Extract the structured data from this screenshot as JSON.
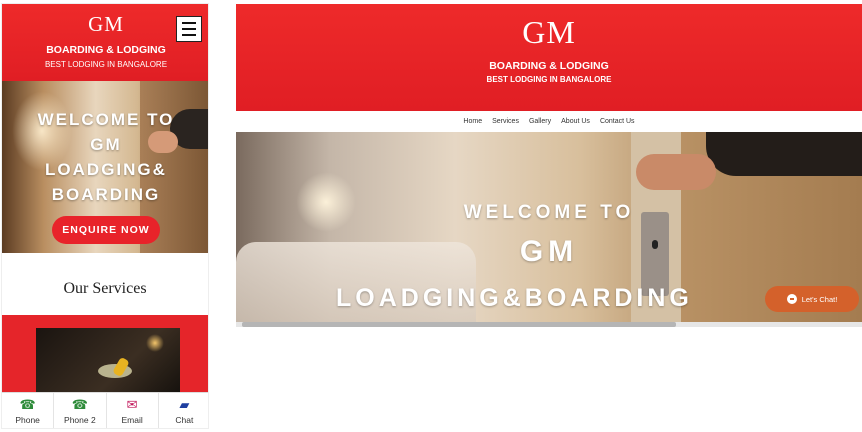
{
  "brand": {
    "logo": "GM",
    "name": "BOARDING & LODGING",
    "tagline": "BEST LODGING IN BANGALORE",
    "accent": "#e5252a"
  },
  "mobile": {
    "menu_icon": "hamburger-icon",
    "hero": {
      "line1": "WELCOME TO",
      "line2": "GM",
      "line3": "LOADGING&",
      "line4": "BOARDING"
    },
    "enquire_label": "ENQUIRE NOW",
    "services_title": "Our Services",
    "bottom_bar": [
      {
        "label": "Phone",
        "icon": "phone-icon"
      },
      {
        "label": "Phone 2",
        "icon": "phone-icon"
      },
      {
        "label": "Email",
        "icon": "email-icon"
      },
      {
        "label": "Chat",
        "icon": "chat-icon"
      }
    ]
  },
  "desktop": {
    "nav": [
      "Home",
      "Services",
      "Gallery",
      "About Us",
      "Contact Us"
    ],
    "hero": {
      "line1": "WELCOME TO",
      "line2": "GM",
      "line3": "LOADGING&BOARDING"
    },
    "chat_label": "Let's Chat!"
  }
}
